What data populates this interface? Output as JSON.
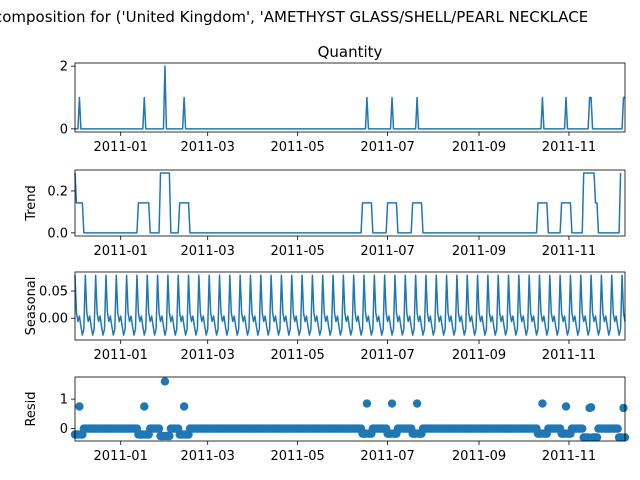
{
  "figure": {
    "suptitle": "composition for ('United Kingdom', 'AMETHYST GLASS/SHELL/PEARL NECKLACE"
  },
  "chart_data": [
    {
      "type": "line",
      "title": "Quantity",
      "ylabel": "",
      "xlim": [
        "2010-12-01",
        "2011-12-09"
      ],
      "ylim": [
        -0.1,
        2.1
      ],
      "yticks": [
        0,
        2
      ],
      "xticks": [
        "2011-01",
        "2011-03",
        "2011-05",
        "2011-07",
        "2011-09",
        "2011-11"
      ],
      "color": "#1f77b4",
      "baseline": 0,
      "points": [
        [
          "2010-12-01",
          0
        ],
        [
          "2010-12-03",
          0
        ],
        [
          "2010-12-04",
          1
        ],
        [
          "2010-12-05",
          0
        ],
        [
          "2011-01-16",
          0
        ],
        [
          "2011-01-17",
          1
        ],
        [
          "2011-01-18",
          0
        ],
        [
          "2011-01-30",
          0
        ],
        [
          "2011-01-31",
          2
        ],
        [
          "2011-02-01",
          0
        ],
        [
          "2011-02-12",
          0
        ],
        [
          "2011-02-13",
          1
        ],
        [
          "2011-02-14",
          0
        ],
        [
          "2011-06-16",
          0
        ],
        [
          "2011-06-17",
          1
        ],
        [
          "2011-06-18",
          0
        ],
        [
          "2011-07-03",
          0
        ],
        [
          "2011-07-04",
          1
        ],
        [
          "2011-07-05",
          0
        ],
        [
          "2011-07-20",
          0
        ],
        [
          "2011-07-21",
          1
        ],
        [
          "2011-07-22",
          0
        ],
        [
          "2011-10-13",
          0
        ],
        [
          "2011-10-14",
          1
        ],
        [
          "2011-10-15",
          0
        ],
        [
          "2011-10-29",
          0
        ],
        [
          "2011-10-30",
          1
        ],
        [
          "2011-10-31",
          0
        ],
        [
          "2011-11-14",
          0
        ],
        [
          "2011-11-15",
          1
        ],
        [
          "2011-11-16",
          1
        ],
        [
          "2011-11-17",
          0
        ],
        [
          "2011-12-07",
          0
        ],
        [
          "2011-12-08",
          1
        ],
        [
          "2011-12-09",
          1
        ]
      ]
    },
    {
      "type": "line",
      "title": "",
      "ylabel": "Trend",
      "xlim": [
        "2010-12-01",
        "2011-12-09"
      ],
      "ylim": [
        -0.015,
        0.3
      ],
      "yticks": [
        0.0,
        0.2
      ],
      "xticks": [
        "2011-01",
        "2011-03",
        "2011-05",
        "2011-07",
        "2011-09",
        "2011-11"
      ],
      "color": "#1f77b4",
      "points": [
        [
          "2010-12-01",
          0.2857
        ],
        [
          "2010-12-02",
          0.1429
        ],
        [
          "2010-12-06",
          0.1429
        ],
        [
          "2010-12-07",
          0
        ],
        [
          "2011-01-12",
          0
        ],
        [
          "2011-01-13",
          0.1429
        ],
        [
          "2011-01-20",
          0.1429
        ],
        [
          "2011-01-21",
          0
        ],
        [
          "2011-01-27",
          0
        ],
        [
          "2011-01-28",
          0.2857
        ],
        [
          "2011-02-03",
          0.2857
        ],
        [
          "2011-02-04",
          0
        ],
        [
          "2011-02-09",
          0
        ],
        [
          "2011-02-10",
          0.1429
        ],
        [
          "2011-02-16",
          0.1429
        ],
        [
          "2011-02-17",
          0
        ],
        [
          "2011-06-13",
          0
        ],
        [
          "2011-06-14",
          0.1429
        ],
        [
          "2011-06-20",
          0.1429
        ],
        [
          "2011-06-21",
          0
        ],
        [
          "2011-06-30",
          0
        ],
        [
          "2011-07-01",
          0.1429
        ],
        [
          "2011-07-07",
          0.1429
        ],
        [
          "2011-07-08",
          0
        ],
        [
          "2011-07-17",
          0
        ],
        [
          "2011-07-18",
          0.1429
        ],
        [
          "2011-07-24",
          0.1429
        ],
        [
          "2011-07-25",
          0
        ],
        [
          "2011-10-10",
          0
        ],
        [
          "2011-10-11",
          0.1429
        ],
        [
          "2011-10-17",
          0.1429
        ],
        [
          "2011-10-18",
          0
        ],
        [
          "2011-10-26",
          0
        ],
        [
          "2011-10-27",
          0.1429
        ],
        [
          "2011-11-02",
          0.1429
        ],
        [
          "2011-11-03",
          0
        ],
        [
          "2011-11-10",
          0
        ],
        [
          "2011-11-11",
          0.2857
        ],
        [
          "2011-11-18",
          0.2857
        ],
        [
          "2011-11-19",
          0.1429
        ],
        [
          "2011-11-20",
          0.1429
        ],
        [
          "2011-11-21",
          0
        ],
        [
          "2011-12-05",
          0
        ],
        [
          "2011-12-06",
          0.2857
        ]
      ]
    },
    {
      "type": "line",
      "title": "",
      "ylabel": "Seasonal",
      "xlim": [
        "2010-12-01",
        "2011-12-09"
      ],
      "ylim": [
        -0.04,
        0.085
      ],
      "yticks": [
        0.0,
        0.05
      ],
      "xticks": [
        "2011-01",
        "2011-03",
        "2011-05",
        "2011-07",
        "2011-09",
        "2011-11"
      ],
      "color": "#1f77b4",
      "start": "2010-12-01",
      "end": "2011-12-09",
      "weekly_pattern": [
        0.079,
        0.01,
        -0.006,
        0.004,
        -0.015,
        -0.031,
        -0.02
      ]
    },
    {
      "type": "scatter",
      "title": "",
      "ylabel": "Resid",
      "xlim": [
        "2010-12-01",
        "2011-12-09"
      ],
      "ylim": [
        -0.42,
        1.75
      ],
      "yticks": [
        0,
        1
      ],
      "xticks": [
        "2011-01",
        "2011-03",
        "2011-05",
        "2011-07",
        "2011-09",
        "2011-11"
      ],
      "color": "#1f77b4",
      "start": "2010-12-01",
      "end": "2011-12-09",
      "default_value": 0.0,
      "dip_ranges": [
        [
          "2010-12-01",
          "2010-12-06",
          -0.2
        ],
        [
          "2011-01-13",
          "2011-01-20",
          -0.2
        ],
        [
          "2011-01-28",
          "2011-02-03",
          -0.25
        ],
        [
          "2011-02-10",
          "2011-02-16",
          -0.2
        ],
        [
          "2011-06-14",
          "2011-06-20",
          -0.17
        ],
        [
          "2011-07-01",
          "2011-07-07",
          -0.17
        ],
        [
          "2011-07-18",
          "2011-07-24",
          -0.17
        ],
        [
          "2011-10-11",
          "2011-10-17",
          -0.17
        ],
        [
          "2011-10-27",
          "2011-11-02",
          -0.17
        ],
        [
          "2011-11-11",
          "2011-11-20",
          -0.3
        ],
        [
          "2011-12-05",
          "2011-12-09",
          -0.3
        ]
      ],
      "peaks": [
        [
          "2010-12-04",
          0.75
        ],
        [
          "2011-01-17",
          0.75
        ],
        [
          "2011-01-31",
          1.6
        ],
        [
          "2011-02-13",
          0.75
        ],
        [
          "2011-06-17",
          0.85
        ],
        [
          "2011-07-04",
          0.85
        ],
        [
          "2011-07-21",
          0.85
        ],
        [
          "2011-10-14",
          0.85
        ],
        [
          "2011-10-30",
          0.75
        ],
        [
          "2011-11-15",
          0.7
        ],
        [
          "2011-11-16",
          0.72
        ],
        [
          "2011-12-08",
          0.7
        ]
      ]
    }
  ]
}
